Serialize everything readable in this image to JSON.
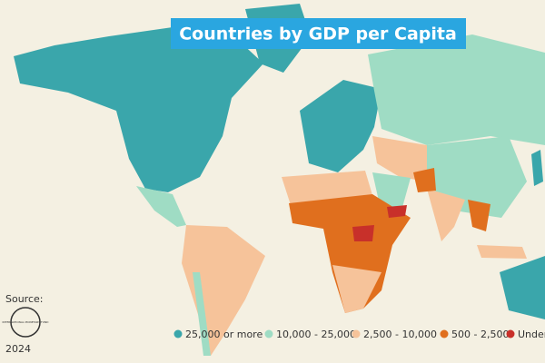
{
  "title": "Countries by GDP per Capita",
  "source": {
    "label": "Source:",
    "logo_text": "INTERNATIONAL MONETARY FUND",
    "year": "2024"
  },
  "legend": [
    {
      "label": "25,000 or more",
      "color": "#3aa6ab"
    },
    {
      "label": "10,000 - 25,000",
      "color": "#9fdcc4"
    },
    {
      "label": "2,500 - 10,000",
      "color": "#f6c39a"
    },
    {
      "label": "500 - 2,500",
      "color": "#e06f1e"
    },
    {
      "label": "Under",
      "color": "#c8302a"
    }
  ]
}
